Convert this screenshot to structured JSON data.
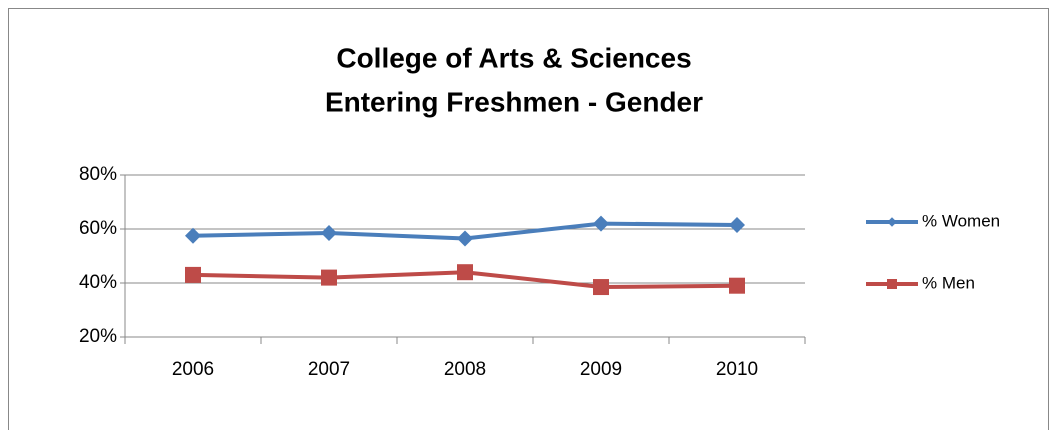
{
  "chart_data": {
    "type": "line",
    "title": [
      "College of Arts & Sciences",
      "Entering Freshmen - Gender"
    ],
    "categories": [
      "2006",
      "2007",
      "2008",
      "2009",
      "2010"
    ],
    "series": [
      {
        "name": "% Women",
        "color": "#4a7ebb",
        "marker": "diamond",
        "values": [
          57.5,
          58.5,
          56.5,
          62,
          61.5
        ]
      },
      {
        "name": "% Men",
        "color": "#be4b48",
        "marker": "square",
        "values": [
          43,
          42,
          44,
          38.5,
          39
        ]
      }
    ],
    "ylim": [
      20,
      80
    ],
    "yticks": [
      {
        "value": 20,
        "label": "20%"
      },
      {
        "value": 40,
        "label": "40%"
      },
      {
        "value": 60,
        "label": "60%"
      },
      {
        "value": 80,
        "label": "80%"
      }
    ],
    "grid": true,
    "legend": "right"
  }
}
